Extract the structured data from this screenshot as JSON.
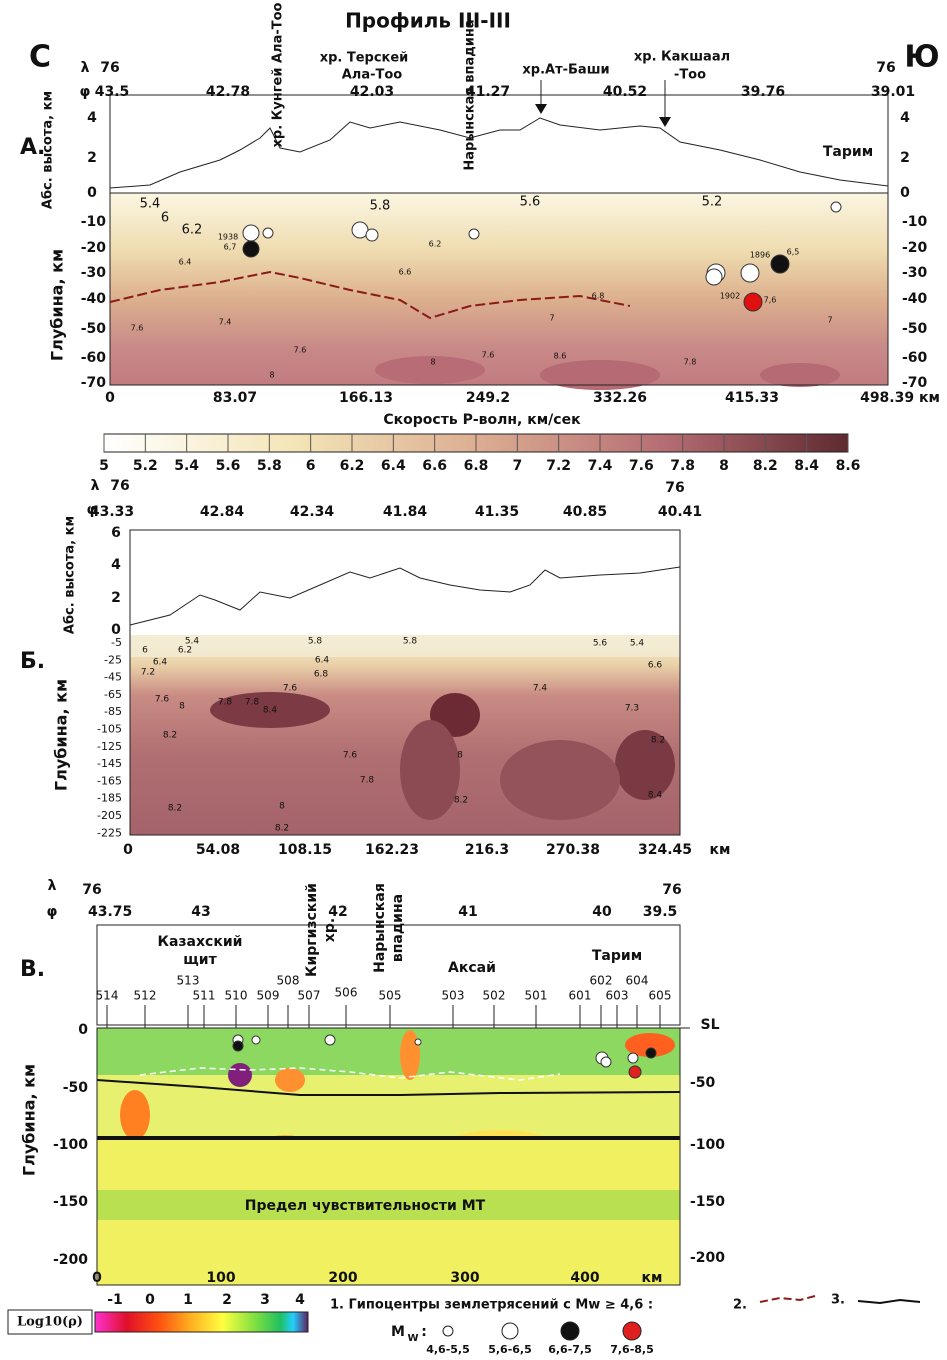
{
  "title": "Профиль III-III",
  "panel_a": {
    "letter": "А.",
    "north": "С",
    "south": "Ю",
    "lambda_symbol": "λ",
    "phi_symbol": "φ",
    "lambda_left": "76",
    "lambda_right": "76",
    "lat_ticks": [
      "43.5",
      "42.78",
      "42.03",
      "41.27",
      "40.52",
      "39.76",
      "39.01"
    ],
    "ranges": [
      "хр. Кунгей Ала-Тоо",
      "хр. Терскей",
      "Ала-Тоо",
      "Нарынская впадина",
      "хр.Ат-Баши",
      "хр. Какшаал",
      "-Тоо"
    ],
    "tarim": "Тарим",
    "height_label": "Абс. высота, км",
    "height_ticks": [
      "4",
      "2",
      "0"
    ],
    "depth_label": "Глубина, км",
    "depth_ticks": [
      "-10",
      "-20",
      "-30",
      "-40",
      "-50",
      "-60",
      "-70"
    ],
    "dist_ticks": [
      "0",
      "83.07",
      "166.13",
      "249.2",
      "332.26",
      "415.33",
      "498.39 км"
    ],
    "contour_labels": [
      "5.4",
      "6",
      "6.2",
      "5.8",
      "5.6",
      "5.2",
      "6.4",
      "6.6",
      "6.2",
      "6.8",
      "7",
      "7.4",
      "7.6",
      "7.6",
      "8",
      "7.6",
      "8",
      "8.6",
      "7.8",
      "7"
    ],
    "eq_labels": [
      "1938",
      "6,7",
      "1896",
      "6,5",
      "1902",
      "7,6"
    ],
    "colorbar_title": "Скорость Р-волн, км/сек",
    "colorbar_ticks": [
      "5",
      "5.2",
      "5.4",
      "5.6",
      "5.8",
      "6",
      "6.2",
      "6.4",
      "6.6",
      "6.8",
      "7",
      "7.2",
      "7.4",
      "7.6",
      "7.8",
      "8",
      "8.2",
      "8.4",
      "8.6"
    ]
  },
  "panel_b": {
    "letter": "Б.",
    "lambda_symbol": "λ",
    "phi_symbol": "φ",
    "lambda_left": "76",
    "lambda_right": "76",
    "lat_ticks": [
      "43.33",
      "42.84",
      "42.34",
      "41.84",
      "41.35",
      "40.85",
      "40.41"
    ],
    "height_label": "Абс. высота, км",
    "height_ticks": [
      "6",
      "4",
      "2",
      "0"
    ],
    "depth_label": "Глубина, км",
    "depth_ticks": [
      "-5",
      "-25",
      "-45",
      "-65",
      "-85",
      "-105",
      "-125",
      "-145",
      "-165",
      "-185",
      "-205",
      "-225"
    ],
    "dist_ticks": [
      "0",
      "54.08",
      "108.15",
      "162.23",
      "216.3",
      "270.38",
      "324.45"
    ],
    "dist_unit": "км",
    "contour_labels": [
      "6",
      "5.4",
      "6.2",
      "6.4",
      "7.2",
      "7.6",
      "8",
      "7.8",
      "8.4",
      "8.2",
      "7.6",
      "7.8",
      "8",
      "8.2",
      "5.8",
      "5.8",
      "6.4",
      "6.8",
      "7.6",
      "7.8",
      "8",
      "8.2",
      "5.6",
      "5.4",
      "6.6",
      "7.4",
      "7.3",
      "8.2",
      "8.4",
      "8.2"
    ]
  },
  "panel_c": {
    "letter": "В.",
    "lambda_symbol": "λ",
    "phi_symbol": "φ",
    "lambda_left": "76",
    "lambda_right": "76",
    "lat_ticks": [
      "43.75",
      "43",
      "42",
      "41",
      "40",
      "39.5"
    ],
    "regions": [
      "Казахский",
      "щит",
      "Киргизский",
      "хр.",
      "Нарынская",
      "впадина",
      "Аксай",
      "Тарим"
    ],
    "stations": [
      "514",
      "512",
      "513",
      "511",
      "510",
      "509",
      "508",
      "507",
      "506",
      "505",
      "503",
      "502",
      "501",
      "601",
      "602",
      "603",
      "604",
      "605"
    ],
    "sea_level": "SL",
    "depth_label": "Глубина, км",
    "depth_ticks_left": [
      "0",
      "-50",
      "-100",
      "-150",
      "-200"
    ],
    "depth_ticks_right": [
      "-50",
      "-100",
      "-150",
      "-200"
    ],
    "dist_ticks": [
      "0",
      "100",
      "200",
      "300",
      "400"
    ],
    "dist_unit": "км",
    "limit_note": "Предел чувствительности МТ",
    "colorbar_title": "Log10(ρ)",
    "colorbar_ticks": [
      "-1",
      "0",
      "1",
      "2",
      "3",
      "4"
    ]
  },
  "legend": {
    "item1": "1. Гипоцентры землетрясений с Mw ≥ 4,6 :",
    "item2": "2.",
    "item3": "3.",
    "mw": "M",
    "mw_sub": "W",
    "colon": ":",
    "classes": [
      "4,6-5,5",
      "5,6-6,5",
      "6,6-7,5",
      "7,6-8,5"
    ]
  }
}
